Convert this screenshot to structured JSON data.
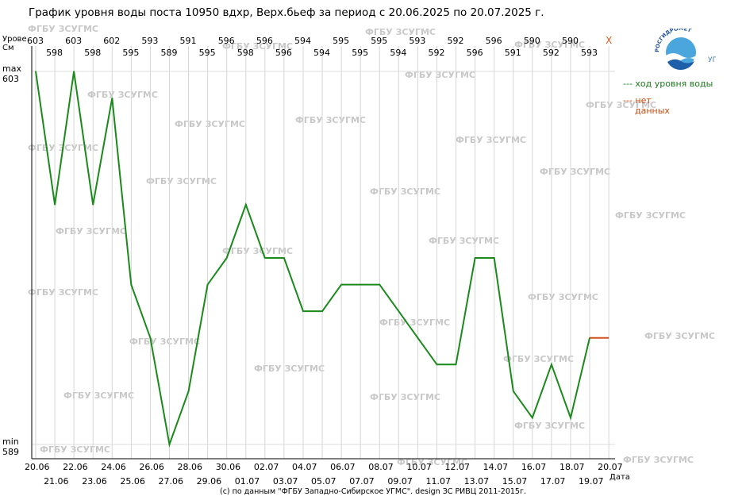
{
  "page": {
    "title": "График уровня воды поста 10950 вдхр, Верх.бьеф за период с 20.06.2025 по 20.07.2025 г.",
    "footer": "(c) по данным \"ФГБУ Западно-Сибирское УГМС\". design ЗС РИВЦ 2011-2015г.",
    "watermark": "ФГБУ ЗСУГМС",
    "no_data_mark": "X",
    "y_axis_label_line1": "Урове",
    "y_axis_label_line2": "Cм",
    "x_axis_label": "Дата",
    "max_label": "max",
    "max_value_label": "603",
    "min_label": "min",
    "min_value_label": "589",
    "logo_text": "РОСГИДРОМЕТ",
    "logo_sub": "УГМС"
  },
  "legend": {
    "flow": "--- ход уровня воды",
    "nodata_line1": "--- нет",
    "nodata_line2": "данных"
  },
  "colors": {
    "series": "#1a8a1a",
    "nodata": "#d2511a",
    "watermark": "#c8c8c8",
    "no_data_x": "#e05a20"
  },
  "chart_data": {
    "type": "line",
    "title": "График уровня воды поста 10950 вдхр, Верх.бьеф за период с 20.06.2025 по 20.07.2025 г.",
    "xlabel": "Дата",
    "ylabel": "Урове Cм",
    "ylim": [
      589,
      603
    ],
    "x": [
      "20.06",
      "21.06",
      "22.06",
      "23.06",
      "24.06",
      "25.06",
      "26.06",
      "27.06",
      "28.06",
      "29.06",
      "30.06",
      "01.07",
      "02.07",
      "03.07",
      "04.07",
      "05.07",
      "06.07",
      "07.07",
      "08.07",
      "09.07",
      "10.07",
      "11.07",
      "12.07",
      "13.07",
      "14.07",
      "15.07",
      "16.07",
      "17.07",
      "18.07",
      "19.07",
      "20.07"
    ],
    "top_values": [
      "603",
      "598",
      "603",
      "598",
      "602",
      "595",
      "593",
      "589",
      "591",
      "595",
      "596",
      "598",
      "596",
      "596",
      "594",
      "594",
      "595",
      "595",
      "595",
      "594",
      "593",
      "592",
      "592",
      "596",
      "596",
      "591",
      "590",
      "592",
      "590",
      "593",
      "X"
    ],
    "series": [
      {
        "name": "ход уровня воды",
        "values": [
          603,
          598,
          603,
          598,
          602,
          595,
          593,
          589,
          591,
          595,
          596,
          598,
          596,
          596,
          594,
          594,
          595,
          595,
          595,
          594,
          593,
          592,
          592,
          596,
          596,
          591,
          590,
          592,
          590,
          593,
          null
        ]
      }
    ],
    "no_data_segment": {
      "name": "нет данных",
      "x": [
        "19.07",
        "20.07"
      ],
      "value": 593
    },
    "grid": true,
    "legend_position": "right"
  }
}
